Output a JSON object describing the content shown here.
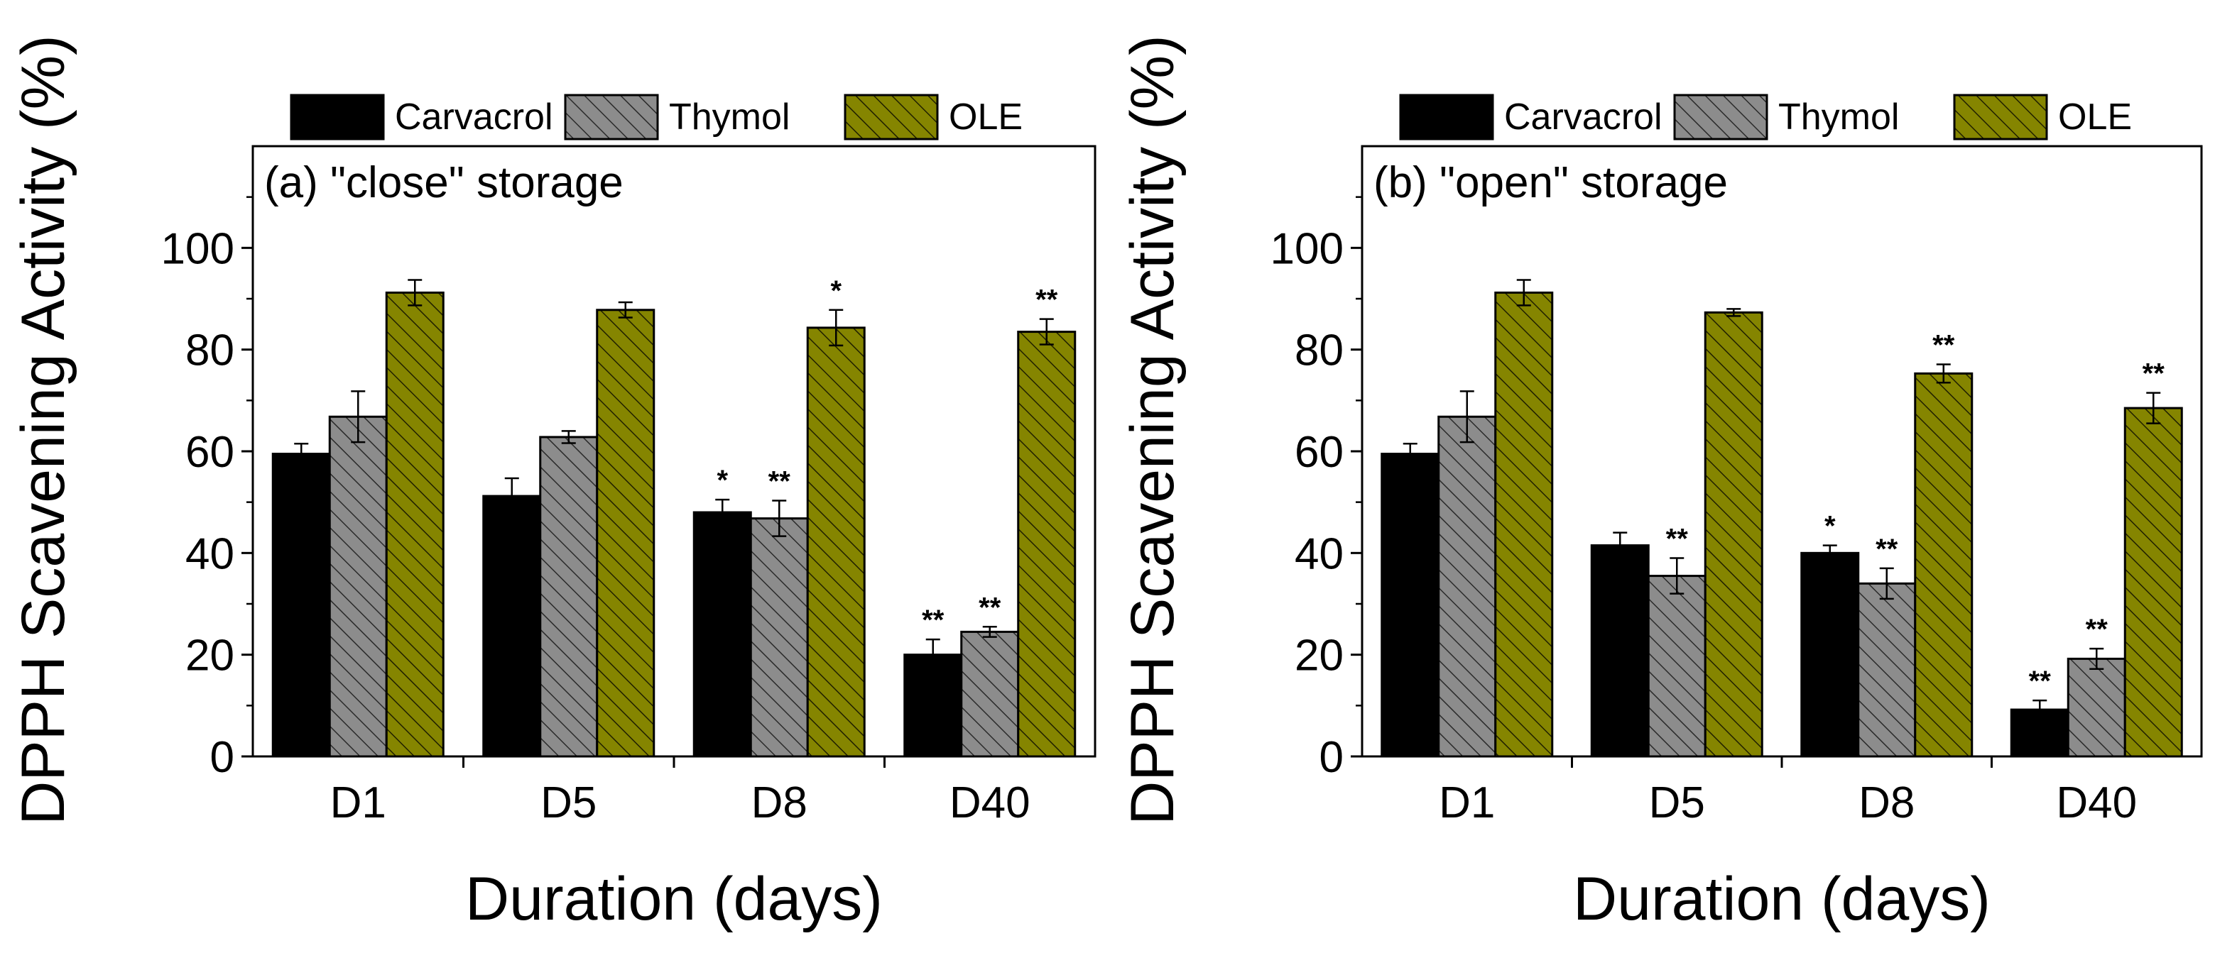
{
  "chart_data": [
    {
      "type": "bar",
      "title": "(a) \"close\" storage",
      "xlabel": "Duration (days)",
      "ylabel": "DPPH Scavening Activity (%)",
      "ylim": [
        0,
        120
      ],
      "yticks": [
        0,
        20,
        40,
        60,
        80,
        100
      ],
      "categories": [
        "D1",
        "D5",
        "D8",
        "D40"
      ],
      "legend_position": "top",
      "series": [
        {
          "name": "Carvacrol",
          "color": "#000000",
          "pattern": "solid",
          "values": [
            59.5,
            51.2,
            48.0,
            20.0
          ],
          "errors": [
            2.0,
            3.5,
            2.5,
            3.0
          ],
          "significance": [
            "",
            "",
            "*",
            "**"
          ]
        },
        {
          "name": "Thymol",
          "color": "#8c8c8c",
          "pattern": "hatch",
          "values": [
            66.8,
            62.8,
            46.8,
            24.5
          ],
          "errors": [
            5.0,
            1.2,
            3.5,
            1.0
          ],
          "significance": [
            "",
            "",
            "**",
            "**"
          ]
        },
        {
          "name": "OLE",
          "color": "#858500",
          "pattern": "hatch",
          "values": [
            91.2,
            87.8,
            84.3,
            83.5
          ],
          "errors": [
            2.5,
            1.5,
            3.5,
            2.5
          ],
          "significance": [
            "",
            "",
            "*",
            "**"
          ]
        }
      ]
    },
    {
      "type": "bar",
      "title": "(b) \"open\" storage",
      "xlabel": "Duration (days)",
      "ylabel": "DPPH Scavening Activity (%)",
      "ylim": [
        0,
        120
      ],
      "yticks": [
        0,
        20,
        40,
        60,
        80,
        100
      ],
      "categories": [
        "D1",
        "D5",
        "D8",
        "D40"
      ],
      "legend_position": "top",
      "series": [
        {
          "name": "Carvacrol",
          "color": "#000000",
          "pattern": "solid",
          "values": [
            59.5,
            41.5,
            40.0,
            9.2
          ],
          "errors": [
            2.0,
            2.5,
            1.5,
            1.8
          ],
          "significance": [
            "",
            "",
            "*",
            "**"
          ]
        },
        {
          "name": "Thymol",
          "color": "#8c8c8c",
          "pattern": "hatch",
          "values": [
            66.8,
            35.5,
            34.0,
            19.2
          ],
          "errors": [
            5.0,
            3.5,
            3.0,
            2.0
          ],
          "significance": [
            "",
            "**",
            "**",
            "**"
          ]
        },
        {
          "name": "OLE",
          "color": "#858500",
          "pattern": "hatch",
          "values": [
            91.2,
            87.3,
            75.3,
            68.5
          ],
          "errors": [
            2.5,
            0.7,
            1.8,
            3.0
          ],
          "significance": [
            "",
            "",
            "**",
            "**"
          ]
        }
      ]
    }
  ]
}
